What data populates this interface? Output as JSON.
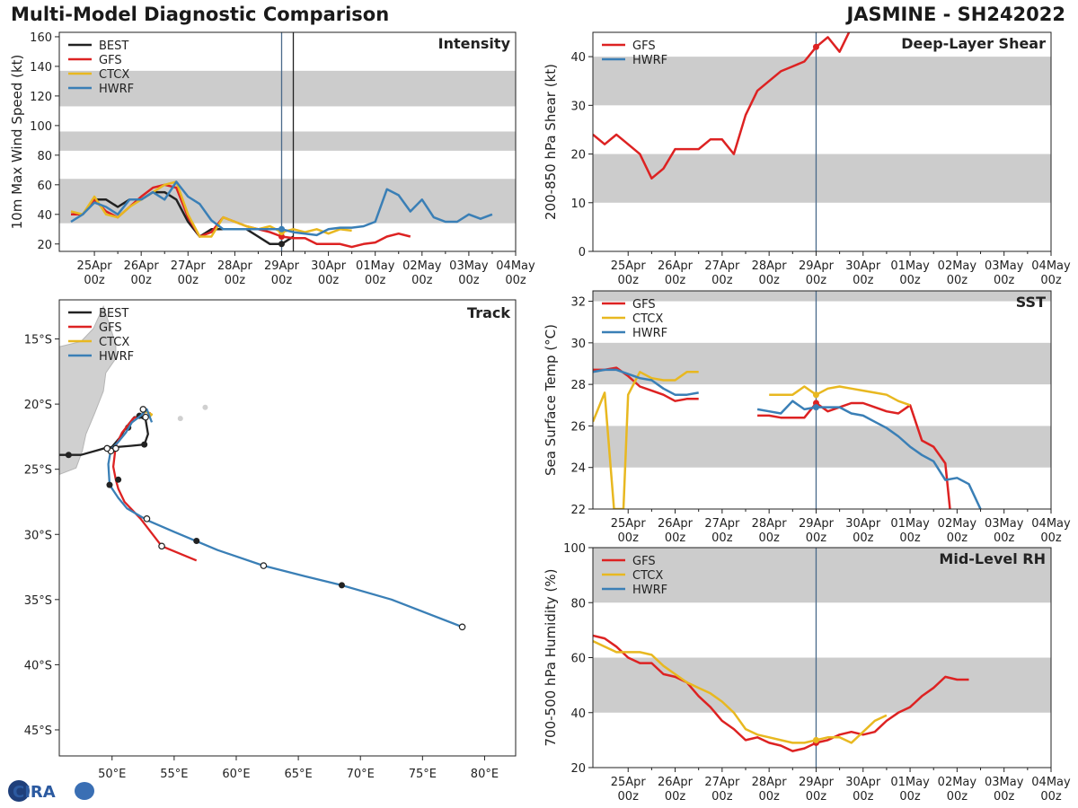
{
  "header": {
    "left_title": "Multi-Model Diagnostic Comparison",
    "right_title": "JASMINE - SH242022"
  },
  "logo_text": "CIRA",
  "colors": {
    "BEST": "#222222",
    "GFS": "#dd2222",
    "CTCX": "#e8b820",
    "HWRF": "#3a7fb6",
    "band": "#cccccc",
    "vline": "#4a6a8a"
  },
  "time_ticks": {
    "top": [
      "25Apr",
      "26Apr",
      "27Apr",
      "28Apr",
      "29Apr",
      "30Apr",
      "01May",
      "02May",
      "03May",
      "04May"
    ],
    "bottom": [
      "00z",
      "00z",
      "00z",
      "00z",
      "00z",
      "00z",
      "00z",
      "00z",
      "00z",
      "00z"
    ]
  },
  "chart_data": [
    {
      "id": "intensity",
      "type": "line",
      "title": "Intensity",
      "ylabel": "10m Max Wind Speed (kt)",
      "xlim": [
        -0.75,
        9.0
      ],
      "ylim": [
        15,
        163
      ],
      "yticks": [
        20,
        40,
        60,
        80,
        100,
        120,
        140,
        160
      ],
      "bands": [
        [
          34,
          64
        ],
        [
          83,
          96
        ],
        [
          113,
          137
        ]
      ],
      "vlines": [
        4.0,
        4.25
      ],
      "legend": [
        "BEST",
        "GFS",
        "CTCX",
        "HWRF"
      ],
      "series": [
        {
          "name": "BEST",
          "x": [
            -0.5,
            -0.25,
            0,
            0.25,
            0.5,
            0.75,
            1,
            1.25,
            1.5,
            1.75,
            2,
            2.25,
            2.5,
            2.75,
            3,
            3.25,
            3.5,
            3.75,
            4,
            4.25
          ],
          "y": [
            40,
            40,
            50,
            50,
            45,
            50,
            50,
            55,
            55,
            50,
            35,
            25,
            30,
            30,
            30,
            30,
            25,
            20,
            20,
            25
          ]
        },
        {
          "name": "GFS",
          "x": [
            -0.5,
            -0.25,
            0,
            0.25,
            0.5,
            0.75,
            1,
            1.25,
            1.5,
            1.75,
            2,
            2.25,
            2.5,
            2.75,
            3,
            3.25,
            3.5,
            3.75,
            4,
            4.25,
            4.5,
            4.75,
            5,
            5.25,
            5.5,
            5.75,
            6,
            6.25,
            6.5,
            6.75
          ],
          "y": [
            40,
            40,
            50,
            42,
            38,
            45,
            52,
            58,
            60,
            58,
            38,
            25,
            28,
            38,
            35,
            32,
            30,
            28,
            25,
            24,
            24,
            20,
            20,
            20,
            18,
            20,
            21,
            25,
            27,
            25
          ]
        },
        {
          "name": "CTCX",
          "x": [
            -0.5,
            -0.25,
            0,
            0.25,
            0.5,
            0.75,
            1,
            1.25,
            1.5,
            1.75,
            2,
            2.25,
            2.5,
            2.75,
            3,
            3.25,
            3.5,
            3.75,
            4,
            4.25,
            4.5,
            4.75,
            5,
            5.25,
            5.5
          ],
          "y": [
            42,
            40,
            52,
            40,
            38,
            45,
            50,
            55,
            60,
            62,
            40,
            25,
            25,
            38,
            35,
            32,
            30,
            32,
            28,
            30,
            28,
            30,
            27,
            30,
            29
          ]
        },
        {
          "name": "HWRF",
          "x": [
            -0.5,
            -0.25,
            0,
            0.25,
            0.5,
            0.75,
            1,
            1.25,
            1.5,
            1.75,
            2,
            2.25,
            2.5,
            2.75,
            3,
            3.25,
            3.5,
            3.75,
            4,
            4.25,
            4.5,
            4.75,
            5,
            5.25,
            5.5,
            5.75,
            6,
            6.25,
            6.5,
            6.75,
            7,
            7.25,
            7.5,
            7.75,
            8,
            8.25,
            8.5
          ],
          "y": [
            35,
            40,
            48,
            45,
            40,
            50,
            50,
            55,
            50,
            62,
            52,
            47,
            36,
            30,
            30,
            30,
            30,
            30,
            30,
            28,
            27,
            26,
            30,
            31,
            31,
            32,
            35,
            57,
            53,
            42,
            50,
            38,
            35,
            35,
            40,
            37,
            40
          ]
        }
      ]
    },
    {
      "id": "shear",
      "type": "line",
      "title": "Deep-Layer Shear",
      "ylabel": "200-850 hPa Shear (kt)",
      "xlim": [
        -0.75,
        9.0
      ],
      "ylim": [
        0,
        45
      ],
      "yticks": [
        0,
        10,
        20,
        30,
        40
      ],
      "bands": [
        [
          10,
          20
        ],
        [
          30,
          40
        ]
      ],
      "vlines": [
        4.0
      ],
      "legend": [
        "GFS",
        "HWRF"
      ],
      "series": [
        {
          "name": "GFS",
          "x": [
            -0.75,
            -0.5,
            -0.25,
            0,
            0.25,
            0.5,
            0.75,
            1,
            1.25,
            1.5,
            1.75,
            2,
            2.25,
            2.5,
            2.75,
            3,
            3.25,
            3.5,
            3.75,
            4,
            4.25,
            4.5,
            4.75
          ],
          "y": [
            24,
            22,
            24,
            22,
            20,
            15,
            17,
            21,
            21,
            21,
            23,
            23,
            20,
            28,
            33,
            35,
            37,
            38,
            39,
            42,
            44,
            41,
            46
          ]
        },
        {
          "name": "HWRF",
          "x": [],
          "y": []
        }
      ]
    },
    {
      "id": "track",
      "type": "line",
      "title": "Track",
      "xlim": [
        45.75,
        82.5
      ],
      "ylim": [
        -47,
        -12
      ],
      "xticks": [
        50,
        55,
        60,
        65,
        70,
        75,
        80
      ],
      "xticklabels": [
        "50°E",
        "55°E",
        "60°E",
        "65°E",
        "70°E",
        "75°E",
        "80°E"
      ],
      "yticks": [
        -15,
        -20,
        -25,
        -30,
        -35,
        -40,
        -45
      ],
      "yticklabels": [
        "15°S",
        "20°S",
        "25°S",
        "30°S",
        "35°S",
        "40°S",
        "45°S"
      ],
      "legend": [
        "BEST",
        "GFS",
        "CTCX",
        "HWRF"
      ],
      "series": [
        {
          "name": "BEST",
          "lon": [
            45.75,
            47.5,
            49,
            49.7,
            50.3,
            51.5,
            52.6,
            52.9,
            52.7,
            52.3,
            51.8,
            51.2,
            50.6,
            49.8
          ],
          "lat": [
            -23.9,
            -23.9,
            -23.5,
            -23.3,
            -23.3,
            -23.2,
            -23.1,
            -22.3,
            -21.2,
            -21.0,
            -21.0,
            -21.7,
            -22.6,
            -23.5
          ],
          "markers": [
            [
              46.5,
              -23.9
            ],
            [
              52.6,
              -23.1
            ],
            [
              51.3,
              -21.8
            ]
          ]
        },
        {
          "name": "GFS",
          "lon": [
            53.1,
            52.7,
            52.2,
            51.7,
            51.3,
            50.8,
            50.3,
            50.1,
            50.3,
            50.5,
            51,
            52.3,
            54,
            56.8
          ],
          "lat": [
            -20.7,
            -20.6,
            -20.9,
            -21.1,
            -21.6,
            -22.2,
            -23.2,
            -24.8,
            -25.8,
            -26.5,
            -27.5,
            -28.8,
            -30.9,
            -32
          ],
          "markers": [
            [
              50.5,
              -25.8
            ],
            [
              52.2,
              -20.9
            ]
          ]
        },
        {
          "name": "CTCX",
          "lon": [
            52.4,
            52.8,
            53.2,
            53.0
          ],
          "lat": [
            -20.7,
            -20.6,
            -20.8,
            -21.0
          ],
          "markers": []
        },
        {
          "name": "HWRF",
          "lon": [
            53.2,
            52.8,
            52.3,
            51.6,
            51.1,
            50.5,
            49.9,
            49.7,
            49.8,
            50.5,
            51.2,
            52.8,
            55,
            58.5,
            62.2,
            65.5,
            68.5,
            72.5,
            78.2
          ],
          "lat": [
            -21.4,
            -20.4,
            -20.9,
            -21.4,
            -22.2,
            -22.9,
            -23.5,
            -24.6,
            -26.2,
            -27.2,
            -28.0,
            -28.9,
            -29.8,
            -31.2,
            -32.4,
            -33.2,
            -33.9,
            -35.0,
            -37.1
          ],
          "markers": [
            [
              49.8,
              -26.2
            ],
            [
              56.8,
              -30.5
            ],
            [
              68.5,
              -33.9
            ]
          ]
        }
      ],
      "open_markers": [
        [
          52.5,
          -20.4
        ],
        [
          52.7,
          -21.0
        ],
        [
          50.3,
          -23.4
        ],
        [
          49.9,
          -23.6
        ],
        [
          49.6,
          -23.4
        ],
        [
          52.8,
          -28.8
        ],
        [
          54,
          -30.9
        ],
        [
          62.2,
          -32.4
        ],
        [
          78.2,
          -37.1
        ]
      ],
      "land": "Madagascar"
    },
    {
      "id": "sst",
      "type": "line",
      "title": "SST",
      "ylabel": "Sea Surface Temp (°C)",
      "xlim": [
        -0.75,
        9.0
      ],
      "ylim": [
        22,
        32.5
      ],
      "yticks": [
        22,
        24,
        26,
        28,
        30,
        32
      ],
      "bands": [
        [
          24,
          26
        ],
        [
          28,
          30
        ],
        [
          32,
          32.5
        ]
      ],
      "vlines": [
        4.0
      ],
      "legend": [
        "GFS",
        "CTCX",
        "HWRF"
      ],
      "series": [
        {
          "name": "GFS",
          "segments": [
            {
              "x": [
                -0.75,
                -0.5,
                -0.25,
                0,
                0.25,
                0.5,
                0.75,
                1,
                1.25,
                1.5
              ],
              "y": [
                28.7,
                28.7,
                28.8,
                28.4,
                27.9,
                27.7,
                27.5,
                27.2,
                27.3,
                27.3
              ]
            },
            {
              "x": [
                2.75,
                3,
                3.25,
                3.5,
                3.75,
                4,
                4.25,
                4.5,
                4.75,
                5,
                5.25,
                5.5,
                5.75,
                6,
                6.25,
                6.5,
                6.75,
                6.85
              ],
              "y": [
                26.5,
                26.5,
                26.4,
                26.4,
                26.4,
                27.1,
                26.7,
                26.9,
                27.1,
                27.1,
                26.9,
                26.7,
                26.6,
                27.0,
                25.3,
                25.0,
                24.2,
                22.0
              ]
            }
          ]
        },
        {
          "name": "CTCX",
          "segments": [
            {
              "x": [
                -0.75,
                -0.5,
                -0.3,
                -0.1,
                0,
                0.25,
                0.5,
                0.75,
                1,
                1.25,
                1.5
              ],
              "y": [
                26.2,
                27.6,
                22,
                22,
                27.5,
                28.6,
                28.3,
                28.2,
                28.2,
                28.6,
                28.6
              ]
            },
            {
              "x": [
                3,
                3.25,
                3.5,
                3.75,
                4,
                4.25,
                4.5,
                4.75,
                5,
                5.25,
                5.5,
                5.75,
                6
              ],
              "y": [
                27.5,
                27.5,
                27.5,
                27.9,
                27.5,
                27.8,
                27.9,
                27.8,
                27.7,
                27.6,
                27.5,
                27.2,
                27.0
              ]
            }
          ]
        },
        {
          "name": "HWRF",
          "segments": [
            {
              "x": [
                -0.75,
                -0.5,
                -0.25,
                0,
                0.25,
                0.5,
                0.75,
                1,
                1.25,
                1.5
              ],
              "y": [
                28.6,
                28.7,
                28.7,
                28.5,
                28.3,
                28.2,
                27.8,
                27.5,
                27.5,
                27.6
              ]
            },
            {
              "x": [
                2.75,
                3,
                3.25,
                3.5,
                3.75,
                4,
                4.25,
                4.5,
                4.75,
                5,
                5.25,
                5.5,
                5.75,
                6,
                6.25,
                6.5,
                6.75,
                7,
                7.25,
                7.5
              ],
              "y": [
                26.8,
                26.7,
                26.6,
                27.2,
                26.8,
                26.9,
                26.9,
                26.9,
                26.6,
                26.5,
                26.2,
                25.9,
                25.5,
                25.0,
                24.6,
                24.3,
                23.4,
                23.5,
                23.2,
                22.0
              ]
            }
          ]
        }
      ]
    },
    {
      "id": "rh",
      "type": "line",
      "title": "Mid-Level RH",
      "ylabel": "700-500 hPa Humidity (%)",
      "xlim": [
        -0.75,
        9.0
      ],
      "ylim": [
        20,
        100
      ],
      "yticks": [
        20,
        40,
        60,
        80,
        100
      ],
      "bands": [
        [
          40,
          60
        ],
        [
          80,
          100
        ]
      ],
      "vlines": [
        4.0
      ],
      "legend": [
        "GFS",
        "CTCX",
        "HWRF"
      ],
      "series": [
        {
          "name": "GFS",
          "x": [
            -0.75,
            -0.5,
            -0.25,
            0,
            0.25,
            0.5,
            0.75,
            1,
            1.25,
            1.5,
            1.75,
            2,
            2.25,
            2.5,
            2.75,
            3,
            3.25,
            3.5,
            3.75,
            4,
            4.25,
            4.5,
            4.75,
            5,
            5.25,
            5.5,
            5.75,
            6,
            6.25,
            6.5,
            6.75,
            7,
            7.25
          ],
          "y": [
            68,
            67,
            64,
            60,
            58,
            58,
            54,
            53,
            51,
            46,
            42,
            37,
            34,
            30,
            31,
            29,
            28,
            26,
            27,
            29,
            30,
            32,
            33,
            32,
            33,
            37,
            40,
            42,
            46,
            49,
            53,
            52,
            52
          ]
        },
        {
          "name": "CTCX",
          "x": [
            -0.75,
            -0.5,
            -0.25,
            0,
            0.25,
            0.5,
            0.75,
            1,
            1.25,
            1.5,
            1.75,
            2,
            2.25,
            2.5,
            2.75,
            3,
            3.25,
            3.5,
            3.75,
            4,
            4.25,
            4.5,
            4.75,
            5,
            5.25,
            5.5
          ],
          "y": [
            66,
            64,
            62,
            62,
            62,
            61,
            57,
            54,
            51,
            49,
            47,
            44,
            40,
            34,
            32,
            31,
            30,
            29,
            29,
            30,
            31,
            31,
            29,
            33,
            37,
            39
          ]
        },
        {
          "name": "HWRF",
          "x": [],
          "y": []
        }
      ]
    }
  ]
}
